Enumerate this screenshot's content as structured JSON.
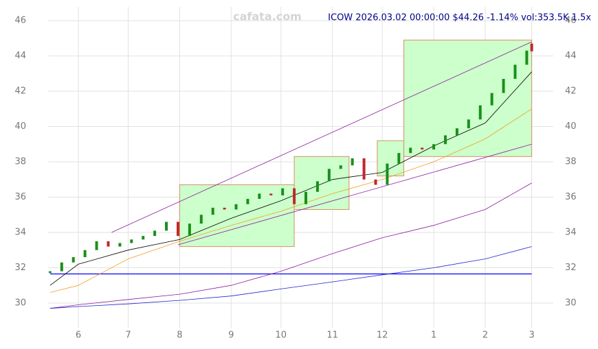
{
  "chart_data": {
    "type": "candlestick",
    "title": "ICOW 2026.03.02 00:00:00 $44.26 -1.14% vol:353.5K 1.5x",
    "watermark": "cafata.com",
    "x": [
      -17,
      -10,
      -3,
      4,
      11,
      18,
      25,
      32,
      39,
      46,
      53,
      60,
      67,
      74,
      81,
      88,
      95,
      102,
      109,
      116,
      123,
      130,
      137,
      144,
      151,
      158,
      165,
      172,
      179,
      186,
      193,
      200,
      207,
      214,
      221,
      228,
      235,
      242,
      249,
      256,
      263,
      270,
      273
    ],
    "open": [
      31.7,
      31.8,
      32.3,
      32.6,
      33.0,
      33.5,
      33.2,
      33.4,
      33.6,
      33.8,
      34.1,
      34.6,
      33.8,
      34.5,
      35.0,
      35.4,
      35.3,
      35.6,
      35.9,
      36.2,
      36.1,
      36.5,
      35.6,
      36.3,
      36.9,
      37.6,
      37.8,
      38.2,
      37.0,
      36.7,
      37.9,
      38.5,
      38.8,
      38.7,
      39.0,
      39.5,
      39.9,
      40.4,
      41.2,
      41.9,
      42.7,
      43.5,
      44.7
    ],
    "close": [
      31.8,
      32.3,
      32.6,
      33.0,
      33.5,
      33.2,
      33.4,
      33.6,
      33.8,
      34.1,
      34.6,
      33.8,
      34.5,
      35.0,
      35.4,
      35.3,
      35.6,
      35.9,
      36.2,
      36.1,
      36.5,
      35.6,
      36.3,
      36.9,
      37.6,
      37.8,
      38.2,
      37.0,
      36.7,
      37.9,
      38.5,
      38.8,
      38.7,
      39.0,
      39.5,
      39.9,
      40.4,
      41.2,
      41.9,
      42.7,
      43.5,
      44.3,
      44.26
    ],
    "up_color": "#1a8f1a",
    "down_color": "#c0272d",
    "boxes": [
      {
        "x": [
          61,
          130
        ],
        "y": [
          33.2,
          36.7
        ]
      },
      {
        "x": [
          130,
          163
        ],
        "y": [
          35.3,
          38.3
        ]
      },
      {
        "x": [
          180,
          196
        ],
        "y": [
          37.2,
          39.2
        ]
      },
      {
        "x": [
          196,
          273
        ],
        "y": [
          38.3,
          44.9
        ]
      }
    ],
    "box_color": "#ccffcc",
    "lines": [
      {
        "color": "#000000",
        "x": [
          -17,
          0,
          30,
          61,
          92,
          122,
          153,
          183,
          214,
          245,
          273
        ],
        "values": [
          31.0,
          32.2,
          33.0,
          33.6,
          34.8,
          35.8,
          37.0,
          37.4,
          38.9,
          40.2,
          43.1
        ]
      },
      {
        "color": "#f0a020",
        "x": [
          -17,
          0,
          30,
          61,
          92,
          122,
          153,
          183,
          214,
          245,
          273
        ],
        "values": [
          30.6,
          31.0,
          32.5,
          33.5,
          34.4,
          35.2,
          36.2,
          37.0,
          38.0,
          39.3,
          41.0
        ]
      },
      {
        "color": "#8b1a9b",
        "x": [
          -17,
          0,
          30,
          61,
          92,
          122,
          153,
          183,
          214,
          245,
          273
        ],
        "values": [
          29.7,
          29.9,
          30.2,
          30.5,
          31.0,
          31.8,
          32.8,
          33.7,
          34.4,
          35.3,
          36.8
        ]
      },
      {
        "color": "#2020d0",
        "x": [
          -17,
          0,
          30,
          61,
          92,
          122,
          153,
          183,
          214,
          245,
          273
        ],
        "values": [
          29.7,
          29.8,
          29.95,
          30.15,
          30.4,
          30.8,
          31.2,
          31.6,
          32.0,
          32.5,
          33.2
        ]
      },
      {
        "color": "#8b1a9b",
        "x": [
          20,
          273
        ],
        "values": [
          34.0,
          44.8
        ]
      },
      {
        "color": "#8b1a9b",
        "x": [
          60,
          273
        ],
        "values": [
          33.3,
          39.0
        ]
      }
    ],
    "hlines": [
      {
        "value": 31.65,
        "color": "#0000ff"
      }
    ],
    "xlim": [
      -18.2,
      286
    ],
    "ylim": [
      28.6,
      46.78
    ],
    "xticks": [
      {
        "value": 0,
        "label": "6"
      },
      {
        "value": 30,
        "label": "7"
      },
      {
        "value": 61,
        "label": "8"
      },
      {
        "value": 92,
        "label": "9"
      },
      {
        "value": 122,
        "label": "10"
      },
      {
        "value": 153,
        "label": "11"
      },
      {
        "value": 183,
        "label": "12"
      },
      {
        "value": 214,
        "label": "1"
      },
      {
        "value": 245,
        "label": "2"
      },
      {
        "value": 273,
        "label": "3"
      }
    ],
    "yticks": [
      30,
      32,
      34,
      36,
      38,
      40,
      42,
      44,
      46
    ],
    "grid": true
  }
}
